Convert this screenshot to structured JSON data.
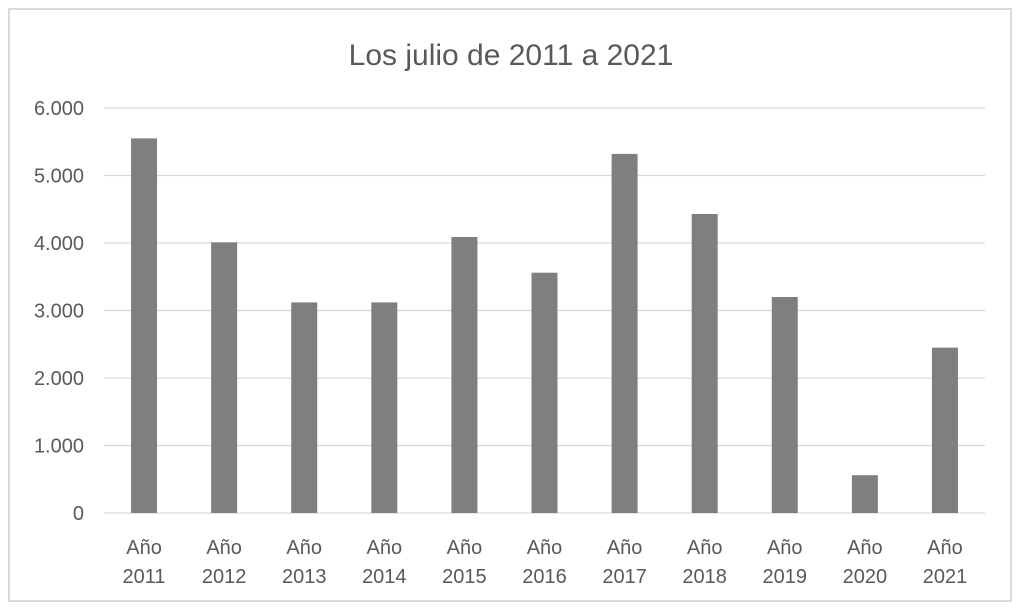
{
  "chart_data": {
    "type": "bar",
    "title": "Los julio de 2011 a 2021",
    "xlabel": "",
    "ylabel": "",
    "categories": [
      [
        "Año",
        "2011"
      ],
      [
        "Año",
        "2012"
      ],
      [
        "Año",
        "2013"
      ],
      [
        "Año",
        "2014"
      ],
      [
        "Año",
        "2015"
      ],
      [
        "Año",
        "2016"
      ],
      [
        "Año",
        "2017"
      ],
      [
        "Año",
        "2018"
      ],
      [
        "Año",
        "2019"
      ],
      [
        "Año",
        "2020"
      ],
      [
        "Año",
        "2021"
      ]
    ],
    "values": [
      5550,
      4010,
      3120,
      3120,
      4090,
      3560,
      5320,
      4430,
      3200,
      560,
      2450
    ],
    "ylim": [
      0,
      6000
    ],
    "yticks": [
      0,
      1000,
      2000,
      3000,
      4000,
      5000,
      6000
    ],
    "ytick_labels": [
      "0",
      "1.000",
      "2.000",
      "3.000",
      "4.000",
      "5.000",
      "6.000"
    ],
    "grid": true,
    "legend": "none",
    "colors": {
      "bar": "#7f7f7f",
      "grid": "#d9d9d9",
      "text": "#595959",
      "border": "#d9d9d9"
    }
  }
}
